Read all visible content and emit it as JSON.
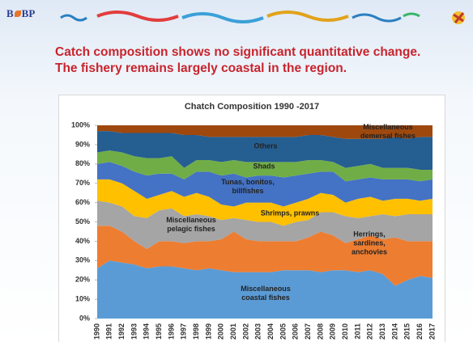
{
  "header": {
    "logo_left": "B",
    "logo_right": "BP"
  },
  "heading": [
    "Catch composition shows no significant quantitative change.",
    "The fishery remains largely coastal in the region."
  ],
  "chart_data": {
    "type": "stacked-area",
    "title": "Chatch Composition 1990 -2017",
    "categories": [
      "1990",
      "1991",
      "1992",
      "1993",
      "1994",
      "1995",
      "1996",
      "1997",
      "1998",
      "1999",
      "2000",
      "2001",
      "2002",
      "2003",
      "2004",
      "2005",
      "2006",
      "2007",
      "2008",
      "2009",
      "2010",
      "2011",
      "2012",
      "2013",
      "2014",
      "2015",
      "2016",
      "2017"
    ],
    "ylim": [
      0,
      100
    ],
    "yticks": [
      {
        "value": 0,
        "label": "0%"
      },
      {
        "value": 10,
        "label": "10%"
      },
      {
        "value": 20,
        "label": "20%"
      },
      {
        "value": 30,
        "label": "30%"
      },
      {
        "value": 40,
        "label": "40%"
      },
      {
        "value": 50,
        "label": "50%"
      },
      {
        "value": 60,
        "label": "60%"
      },
      {
        "value": 70,
        "label": "70%"
      },
      {
        "value": 80,
        "label": "80%"
      },
      {
        "value": 90,
        "label": "90%"
      },
      {
        "value": 100,
        "label": "100%"
      }
    ],
    "series": [
      {
        "name": "Miscellaneous coastal fishes",
        "color": "#5b9bd5",
        "values": [
          26,
          30,
          29,
          28,
          26,
          27,
          27,
          26,
          25,
          26,
          25,
          24,
          24,
          24,
          24,
          25,
          25,
          25,
          24,
          25,
          25,
          24,
          25,
          23,
          17,
          20,
          22,
          21
        ]
      },
      {
        "name": "Herrings, sardines, anchovies",
        "color": "#ed7d31",
        "values": [
          22,
          18,
          16,
          12,
          10,
          13,
          13,
          13,
          15,
          14,
          16,
          21,
          17,
          16,
          16,
          15,
          15,
          17,
          21,
          18,
          14,
          17,
          18,
          18,
          25,
          20,
          18,
          19
        ]
      },
      {
        "name": "Miscellaneous pelagic fishes",
        "color": "#a5a5a5",
        "values": [
          13,
          12,
          13,
          13,
          16,
          16,
          17,
          14,
          14,
          13,
          10,
          7,
          10,
          10,
          10,
          8,
          10,
          9,
          10,
          12,
          14,
          11,
          10,
          13,
          11,
          14,
          14,
          14
        ]
      },
      {
        "name": "Shrimps, prawns",
        "color": "#ffc000",
        "values": [
          11,
          12,
          12,
          13,
          10,
          8,
          9,
          10,
          11,
          10,
          8,
          6,
          9,
          10,
          10,
          10,
          10,
          11,
          10,
          9,
          7,
          10,
          10,
          7,
          9,
          8,
          7,
          8
        ]
      },
      {
        "name": "Tunas, bonitos, billfishes",
        "color": "#4472c4",
        "values": [
          8,
          9,
          9,
          10,
          12,
          11,
          9,
          9,
          11,
          13,
          15,
          17,
          13,
          14,
          14,
          15,
          14,
          13,
          11,
          12,
          11,
          10,
          10,
          11,
          10,
          10,
          10,
          10
        ]
      },
      {
        "name": "Shads",
        "color": "#70ad47",
        "values": [
          6,
          6,
          7,
          8,
          9,
          8,
          9,
          6,
          6,
          6,
          7,
          7,
          8,
          7,
          7,
          8,
          7,
          7,
          6,
          5,
          7,
          7,
          7,
          6,
          6,
          6,
          6,
          5
        ]
      },
      {
        "name": "Others",
        "color": "#255e91",
        "values": [
          11,
          10,
          10,
          12,
          13,
          13,
          12,
          17,
          13,
          12,
          13,
          12,
          13,
          13,
          13,
          13,
          13,
          13,
          13,
          13,
          15,
          14,
          13,
          15,
          16,
          15,
          17,
          17
        ]
      },
      {
        "name": "Miscellaneous demersal fishes",
        "color": "#9e480e",
        "values": [
          3,
          3,
          4,
          4,
          4,
          4,
          4,
          5,
          5,
          6,
          6,
          6,
          6,
          6,
          6,
          6,
          6,
          5,
          5,
          6,
          7,
          7,
          7,
          7,
          6,
          7,
          6,
          6
        ]
      }
    ]
  }
}
